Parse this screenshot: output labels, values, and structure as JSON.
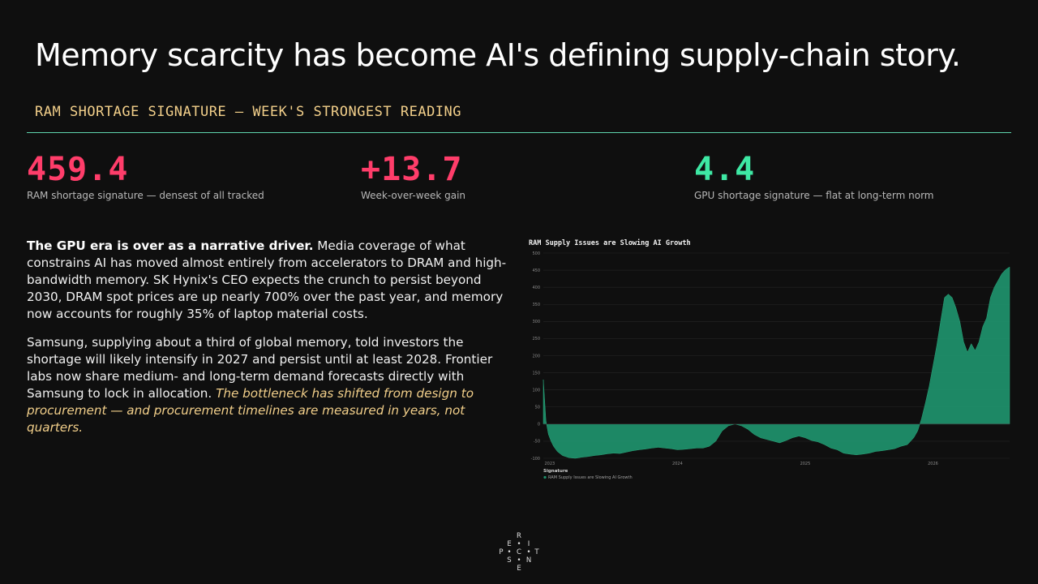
{
  "slide": {
    "title": "Memory scarcity has become AI's defining supply-chain story.",
    "section_label": "RAM SHORTAGE SIGNATURE — WEEK'S STRONGEST READING"
  },
  "colors": {
    "background": "#0f0f0f",
    "accent_red": "#ff3d6a",
    "accent_green": "#3ee8a4",
    "label_gold": "#f2cf8a",
    "rule": "#5fd4ae",
    "chart_fill": "#1f8f6a",
    "italic_gold": "#f2cf8a"
  },
  "kpis": [
    {
      "value": "459.4",
      "caption": "RAM shortage signature — densest of all tracked"
    },
    {
      "value": "+13.7",
      "caption": "Week-over-week gain"
    },
    {
      "value": "4.4",
      "caption": "GPU shortage signature — flat at long-term norm"
    }
  ],
  "body": {
    "p1_lead": "The GPU era is over as a narrative driver.",
    "p1_text": " Media coverage of what constrains AI has moved almost entirely from accelerators to DRAM and high-bandwidth memory. SK Hynix's CEO expects the crunch to persist beyond 2030, DRAM spot prices are up nearly 700% over the past year, and memory now accounts for roughly 35% of laptop material costs.",
    "p2_text": "Samsung, supplying about a third of global memory, told investors the shortage will likely intensify in 2027 and persist until at least 2028. Frontier labs now share medium- and long-term demand forecasts directly with Samsung to lock in allocation. ",
    "p2_emph": "The bottleneck has shifted from design to procurement — and procurement timelines are measured in years, not quarters."
  },
  "chart_data": {
    "type": "area",
    "title": "RAM Supply Issues are Slowing AI Growth",
    "xlabel": "",
    "ylabel": "",
    "ylim": [
      -100,
      500
    ],
    "xlim": [
      2022.95,
      2026.6
    ],
    "yticks": [
      -100,
      -50,
      0,
      50,
      100,
      150,
      200,
      250,
      300,
      350,
      400,
      450,
      500
    ],
    "xticks": [
      {
        "value": 2023,
        "label": "2023"
      },
      {
        "value": 2024,
        "label": "2024"
      },
      {
        "value": 2025,
        "label": "2025"
      },
      {
        "value": 2026,
        "label": "2026"
      }
    ],
    "grid": true,
    "legend": {
      "title": "Signature",
      "placement": "bottom-left"
    },
    "series": [
      {
        "name": "RAM Supply Issues are Slowing AI Growth",
        "x": [
          2022.95,
          2022.97,
          2022.99,
          2023.01,
          2023.03,
          2023.06,
          2023.1,
          2023.15,
          2023.2,
          2023.25,
          2023.3,
          2023.35,
          2023.4,
          2023.45,
          2023.5,
          2023.55,
          2023.6,
          2023.65,
          2023.7,
          2023.75,
          2023.8,
          2023.85,
          2023.9,
          2023.95,
          2024.0,
          2024.05,
          2024.1,
          2024.15,
          2024.2,
          2024.25,
          2024.3,
          2024.35,
          2024.4,
          2024.45,
          2024.5,
          2024.55,
          2024.6,
          2024.65,
          2024.7,
          2024.75,
          2024.8,
          2024.85,
          2024.9,
          2024.95,
          2025.0,
          2025.05,
          2025.1,
          2025.15,
          2025.2,
          2025.25,
          2025.3,
          2025.35,
          2025.4,
          2025.45,
          2025.5,
          2025.55,
          2025.6,
          2025.65,
          2025.7,
          2025.75,
          2025.8,
          2025.85,
          2025.88,
          2025.91,
          2025.94,
          2025.97,
          2026.0,
          2026.03,
          2026.06,
          2026.09,
          2026.12,
          2026.15,
          2026.18,
          2026.21,
          2026.24,
          2026.27,
          2026.3,
          2026.33,
          2026.36,
          2026.39,
          2026.42,
          2026.45,
          2026.48,
          2026.51,
          2026.54,
          2026.57,
          2026.6
        ],
        "y": [
          130,
          10,
          -30,
          -50,
          -65,
          -80,
          -92,
          -98,
          -100,
          -97,
          -95,
          -92,
          -90,
          -87,
          -85,
          -86,
          -82,
          -78,
          -75,
          -73,
          -70,
          -68,
          -70,
          -72,
          -75,
          -74,
          -72,
          -70,
          -70,
          -65,
          -50,
          -20,
          -5,
          0,
          -5,
          -15,
          -30,
          -40,
          -45,
          -50,
          -55,
          -48,
          -40,
          -35,
          -40,
          -48,
          -52,
          -60,
          -70,
          -75,
          -85,
          -88,
          -90,
          -88,
          -85,
          -80,
          -78,
          -75,
          -72,
          -65,
          -60,
          -40,
          -20,
          15,
          60,
          110,
          170,
          230,
          300,
          370,
          380,
          370,
          340,
          300,
          240,
          210,
          235,
          215,
          240,
          285,
          310,
          370,
          400,
          420,
          440,
          452,
          459.4
        ]
      }
    ]
  },
  "logo": {
    "letters": [
      "R",
      "E",
      "I",
      "P",
      "C",
      "T",
      "S",
      "N",
      "E"
    ]
  }
}
